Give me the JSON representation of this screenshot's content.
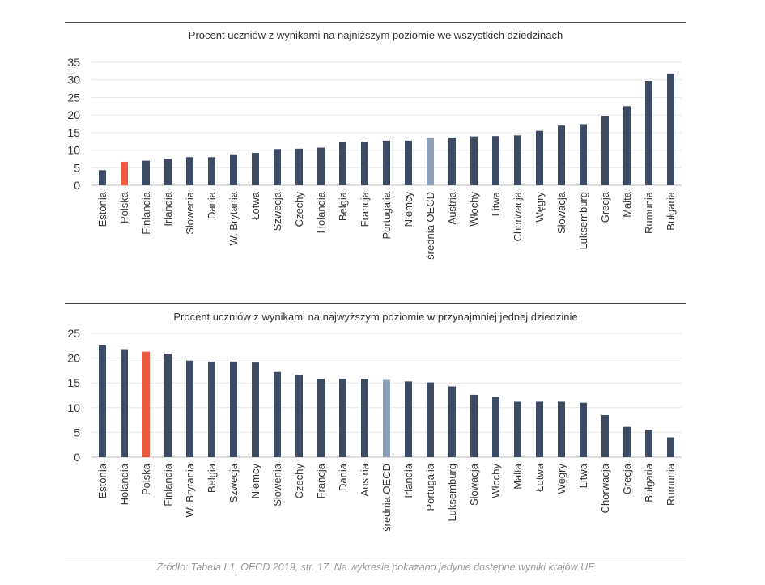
{
  "source_note": "Źródło: Tabela I.1, OECD 2019, str. 17. Na wykresie pokazano jedynie dostępne wyniki krajów UE",
  "colors": {
    "default_bar": "#3d4a63",
    "highlight_bar": "#ef5a3c",
    "average_bar": "#8aa0bb",
    "grid": "#e6e6e6"
  },
  "chart_data": [
    {
      "type": "bar",
      "title": "Procent uczniów z wynikami na najniższym poziomie we wszystkich dziedzinach",
      "ylim": [
        0,
        35
      ],
      "yticks": [
        0,
        5,
        10,
        15,
        20,
        25,
        30,
        35
      ],
      "grid": true,
      "categories": [
        "Estonia",
        "Polska",
        "Finlandia",
        "Irlandia",
        "Słowenia",
        "Dania",
        "W. Brytania",
        "Łotwa",
        "Szwecja",
        "Czechy",
        "Holandia",
        "Belgia",
        "Francja",
        "Portugalia",
        "Niemcy",
        "średnia OECD",
        "Austria",
        "Włochy",
        "Litwa",
        "Chorwacja",
        "Węgry",
        "Słowacja",
        "Luksemburg",
        "Grecja",
        "Malta",
        "Rumunia",
        "Bułgaria"
      ],
      "values": [
        4.3,
        6.7,
        7.0,
        7.5,
        8.0,
        8.0,
        8.8,
        9.2,
        10.3,
        10.4,
        10.7,
        12.3,
        12.4,
        12.7,
        12.7,
        13.4,
        13.6,
        13.9,
        14.0,
        14.2,
        15.5,
        17.0,
        17.4,
        19.8,
        22.5,
        29.7,
        31.8
      ],
      "highlight": [
        "Polska"
      ],
      "average": [
        "średnia OECD"
      ]
    },
    {
      "type": "bar",
      "title": "Procent uczniów z wynikami na najwyższym poziomie w przynajmniej jednej dziedzinie",
      "ylim": [
        0,
        25
      ],
      "yticks": [
        0,
        5,
        10,
        15,
        20,
        25
      ],
      "grid": true,
      "categories": [
        "Estonia",
        "Holandia",
        "Polska",
        "Finlandia",
        "W. Brytania",
        "Belgia",
        "Szwecja",
        "Niemcy",
        "Słowenia",
        "Czechy",
        "Francja",
        "Dania",
        "Austria",
        "średnia OECD",
        "Irlandia",
        "Portugalia",
        "Luksemburg",
        "Słowacja",
        "Włochy",
        "Malta",
        "Łotwa",
        "Węgry",
        "Litwa",
        "Chorwacja",
        "Grecja",
        "Bułgaria",
        "Rumunia"
      ],
      "values": [
        22.6,
        21.8,
        21.3,
        20.9,
        19.5,
        19.3,
        19.3,
        19.1,
        17.2,
        16.6,
        15.8,
        15.8,
        15.8,
        15.6,
        15.3,
        15.1,
        14.3,
        12.6,
        12.1,
        11.2,
        11.2,
        11.2,
        11.0,
        8.5,
        6.1,
        5.5,
        4.0
      ],
      "highlight": [
        "Polska"
      ],
      "average": [
        "średnia OECD"
      ]
    }
  ]
}
